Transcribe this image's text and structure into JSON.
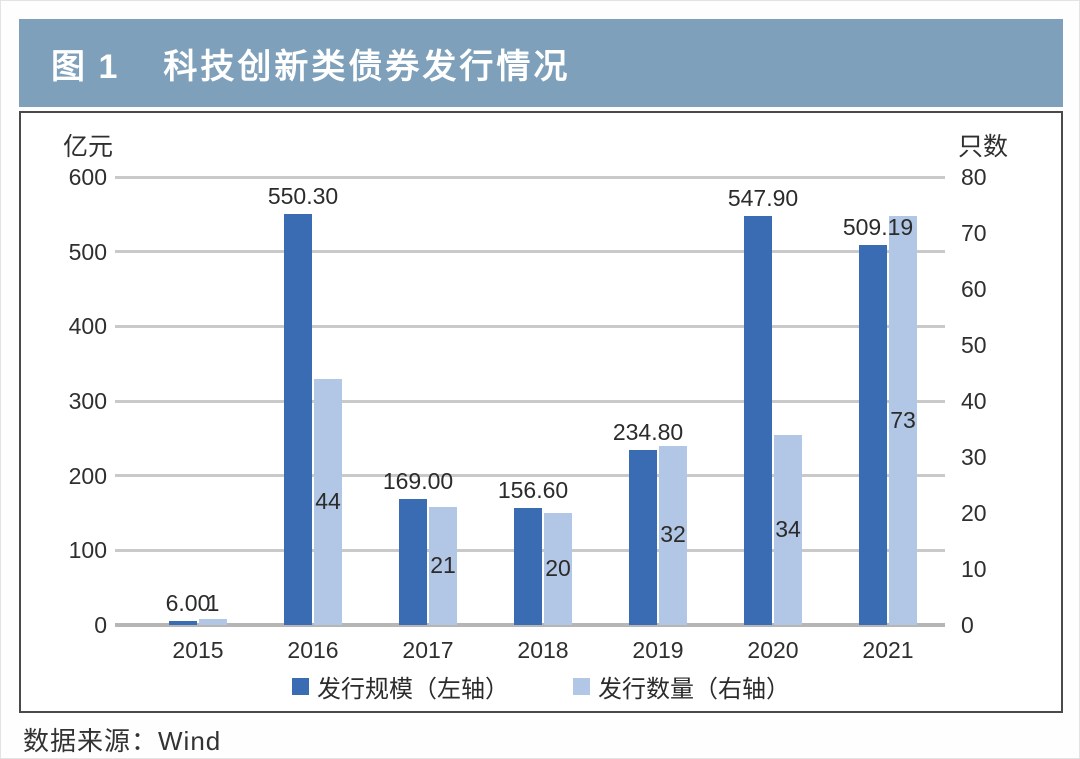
{
  "header": {
    "figure_label": "图 1",
    "title": "科技创新类债券发行情况"
  },
  "source": "数据来源：Wind",
  "chart_data": {
    "type": "bar",
    "title": "科技创新类债券发行情况",
    "categories": [
      "2015",
      "2016",
      "2017",
      "2018",
      "2019",
      "2020",
      "2021"
    ],
    "series": [
      {
        "name": "发行规模（左轴）",
        "axis": "left",
        "values": [
          6.0,
          550.3,
          169.0,
          156.6,
          234.8,
          547.9,
          509.19
        ],
        "labels": [
          "6.00",
          "550.30",
          "169.00",
          "156.60",
          "234.80",
          "547.90",
          "509.19"
        ],
        "color": "#3a6cb4"
      },
      {
        "name": "发行数量（右轴）",
        "axis": "right",
        "values": [
          1,
          44,
          21,
          20,
          32,
          34,
          73
        ],
        "labels": [
          "1",
          "44",
          "21",
          "20",
          "32",
          "34",
          "73"
        ],
        "color": "#b2c6e5"
      }
    ],
    "left_axis": {
      "unit": "亿元",
      "min": 0,
      "max": 600,
      "ticks": [
        600,
        500,
        400,
        300,
        200,
        100,
        0
      ]
    },
    "right_axis": {
      "unit": "只数",
      "min": 0,
      "max": 80,
      "ticks": [
        80,
        70,
        60,
        50,
        40,
        30,
        20,
        10,
        0
      ]
    },
    "grid": true,
    "legend_position": "bottom"
  },
  "colors": {
    "header_bg": "#7ea0ba",
    "bar_dark": "#3a6cb4",
    "bar_light": "#b2c6e5",
    "grid": "#c9c9c9",
    "text": "#2b2b2b"
  }
}
